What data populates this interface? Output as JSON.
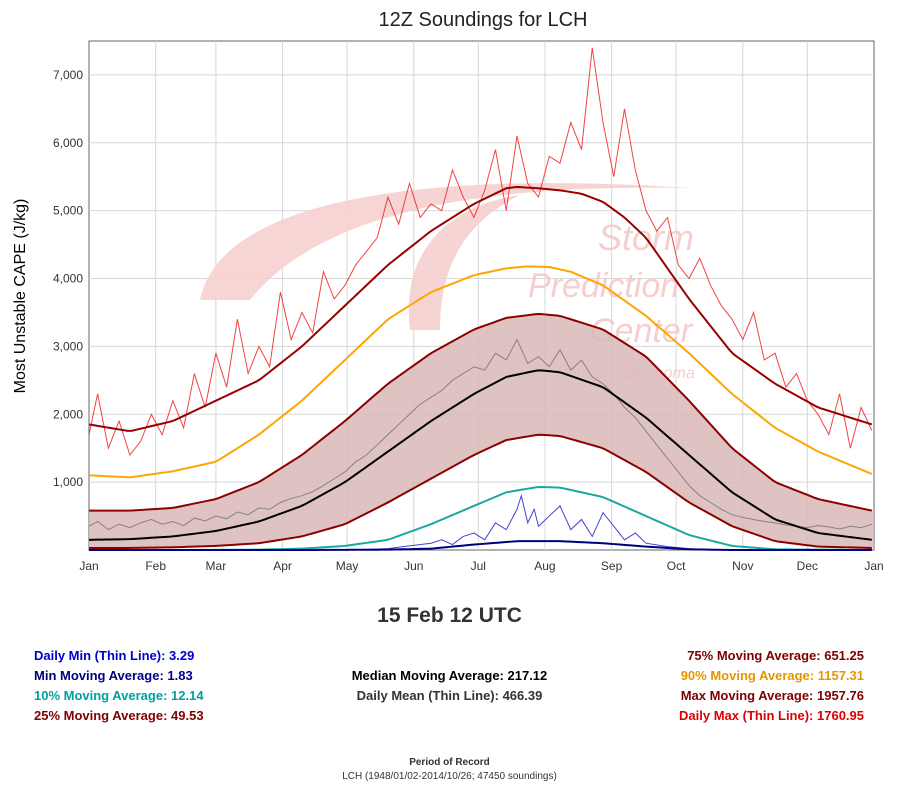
{
  "chart_data": {
    "type": "line",
    "title": "12Z Soundings for LCH",
    "subtitle": "15 Feb 12 UTC",
    "ylabel": "Most Unstable CAPE (J/kg)",
    "xlabel": "",
    "ylim": [
      0,
      7500
    ],
    "y_ticks": [
      1000,
      2000,
      3000,
      4000,
      5000,
      6000,
      7000
    ],
    "y_tick_labels": [
      "1,000",
      "2,000",
      "3,000",
      "4,000",
      "5,000",
      "6,000",
      "7,000"
    ],
    "x_range_days": [
      1,
      366
    ],
    "x_tick_days": [
      1,
      32,
      60,
      91,
      121,
      152,
      182,
      213,
      244,
      274,
      305,
      335,
      366
    ],
    "x_tick_labels": [
      "Jan",
      "Feb",
      "Mar",
      "Apr",
      "May",
      "Jun",
      "Jul",
      "Aug",
      "Sep",
      "Oct",
      "Nov",
      "Dec",
      "Jan"
    ],
    "grid": true,
    "shaded_band": {
      "lower": "25% Moving Average",
      "upper": "75% Moving Average",
      "color": "#d9b8b8"
    },
    "series": [
      {
        "name": "Max Moving Average",
        "color": "#990000",
        "width": 2,
        "days": [
          1,
          20,
          40,
          60,
          80,
          100,
          120,
          140,
          160,
          180,
          195,
          200,
          210,
          220,
          230,
          240,
          250,
          260,
          270,
          280,
          290,
          300,
          320,
          340,
          365
        ],
        "values": [
          1850,
          1750,
          1900,
          2200,
          2500,
          3000,
          3600,
          4200,
          4700,
          5100,
          5330,
          5350,
          5330,
          5300,
          5250,
          5130,
          4900,
          4600,
          4150,
          3700,
          3300,
          2900,
          2450,
          2100,
          1850
        ]
      },
      {
        "name": "90% Moving Average",
        "color": "#ffa500",
        "width": 2,
        "days": [
          1,
          20,
          40,
          60,
          80,
          100,
          120,
          140,
          160,
          180,
          195,
          205,
          215,
          225,
          240,
          260,
          280,
          300,
          320,
          340,
          365
        ],
        "values": [
          1100,
          1070,
          1160,
          1300,
          1700,
          2200,
          2800,
          3400,
          3800,
          4050,
          4150,
          4180,
          4170,
          4100,
          3900,
          3450,
          2900,
          2300,
          1800,
          1450,
          1120
        ]
      },
      {
        "name": "75% Moving Average",
        "color": "#8b0000",
        "width": 2,
        "days": [
          1,
          20,
          40,
          60,
          80,
          100,
          120,
          140,
          160,
          180,
          195,
          210,
          220,
          240,
          260,
          280,
          300,
          320,
          340,
          365
        ],
        "values": [
          580,
          580,
          620,
          750,
          1000,
          1400,
          1900,
          2450,
          2900,
          3250,
          3420,
          3480,
          3450,
          3250,
          2850,
          2200,
          1500,
          1000,
          750,
          580
        ]
      },
      {
        "name": "Median Moving Average",
        "color": "#000000",
        "width": 2,
        "days": [
          1,
          20,
          40,
          60,
          80,
          100,
          120,
          140,
          160,
          180,
          195,
          210,
          220,
          240,
          260,
          280,
          300,
          320,
          340,
          365
        ],
        "values": [
          150,
          160,
          200,
          280,
          420,
          650,
          1000,
          1450,
          1900,
          2300,
          2550,
          2650,
          2620,
          2400,
          1950,
          1400,
          850,
          450,
          250,
          150
        ]
      },
      {
        "name": "25% Moving Average",
        "color": "#8b0000",
        "width": 2,
        "days": [
          1,
          20,
          40,
          60,
          80,
          100,
          120,
          140,
          160,
          180,
          195,
          210,
          220,
          240,
          260,
          280,
          300,
          320,
          340,
          365
        ],
        "values": [
          30,
          30,
          40,
          60,
          100,
          200,
          380,
          700,
          1050,
          1400,
          1620,
          1700,
          1680,
          1500,
          1150,
          700,
          350,
          130,
          50,
          30
        ]
      },
      {
        "name": "10% Moving Average",
        "color": "#1aa8a0",
        "width": 2,
        "days": [
          1,
          40,
          80,
          100,
          120,
          140,
          160,
          180,
          195,
          210,
          220,
          240,
          260,
          280,
          300,
          320,
          365
        ],
        "values": [
          0,
          0,
          5,
          20,
          60,
          150,
          380,
          650,
          850,
          930,
          920,
          780,
          500,
          220,
          60,
          10,
          0
        ]
      },
      {
        "name": "Min Moving Average",
        "color": "#000080",
        "width": 2,
        "days": [
          1,
          100,
          140,
          160,
          180,
          200,
          220,
          240,
          260,
          280,
          300,
          365
        ],
        "values": [
          0,
          0,
          5,
          20,
          80,
          130,
          130,
          100,
          50,
          10,
          0,
          0
        ]
      }
    ],
    "daily_series": [
      {
        "name": "Daily Max (Thin Line)",
        "color": "#ee2222",
        "days": [
          1,
          5,
          10,
          15,
          20,
          25,
          30,
          35,
          40,
          45,
          50,
          55,
          60,
          65,
          70,
          75,
          80,
          85,
          90,
          95,
          100,
          105,
          110,
          115,
          120,
          125,
          130,
          135,
          140,
          145,
          150,
          155,
          160,
          165,
          170,
          175,
          180,
          185,
          190,
          195,
          200,
          205,
          210,
          215,
          220,
          225,
          230,
          235,
          240,
          245,
          250,
          255,
          260,
          265,
          270,
          275,
          280,
          285,
          290,
          295,
          300,
          305,
          310,
          315,
          320,
          325,
          330,
          335,
          340,
          345,
          350,
          355,
          360,
          365
        ],
        "values": [
          1700,
          2300,
          1500,
          1900,
          1400,
          1600,
          2000,
          1700,
          2200,
          1800,
          2600,
          2100,
          2900,
          2400,
          3400,
          2600,
          3000,
          2700,
          3800,
          3100,
          3500,
          3200,
          4100,
          3700,
          3900,
          4200,
          4400,
          4600,
          5200,
          4800,
          5400,
          4900,
          5100,
          5000,
          5600,
          5200,
          4900,
          5300,
          5900,
          5000,
          6100,
          5400,
          5200,
          5800,
          5700,
          6300,
          5900,
          7400,
          6300,
          5500,
          6500,
          5600,
          5000,
          4700,
          4900,
          4200,
          4000,
          4300,
          3900,
          3600,
          3400,
          3100,
          3500,
          2800,
          2900,
          2400,
          2600,
          2200,
          2000,
          1700,
          2300,
          1500,
          2100,
          1760
        ]
      },
      {
        "name": "Daily Mean (Thin Line)",
        "color": "#777777",
        "days": [
          1,
          5,
          10,
          15,
          20,
          25,
          30,
          35,
          40,
          45,
          50,
          55,
          60,
          65,
          70,
          75,
          80,
          85,
          90,
          95,
          100,
          105,
          110,
          115,
          120,
          125,
          130,
          135,
          140,
          145,
          150,
          155,
          160,
          165,
          170,
          175,
          180,
          185,
          190,
          195,
          200,
          205,
          210,
          215,
          220,
          225,
          230,
          235,
          240,
          245,
          250,
          255,
          260,
          265,
          270,
          275,
          280,
          285,
          290,
          295,
          300,
          305,
          310,
          315,
          320,
          325,
          330,
          335,
          340,
          345,
          350,
          355,
          360,
          365
        ],
        "values": [
          350,
          420,
          300,
          380,
          330,
          400,
          450,
          380,
          420,
          360,
          470,
          430,
          500,
          460,
          560,
          520,
          620,
          600,
          700,
          760,
          800,
          860,
          950,
          1050,
          1150,
          1300,
          1400,
          1550,
          1700,
          1850,
          2000,
          2150,
          2250,
          2350,
          2500,
          2600,
          2700,
          2650,
          2900,
          2800,
          3100,
          2750,
          2850,
          2700,
          2950,
          2650,
          2800,
          2550,
          2450,
          2300,
          2100,
          1950,
          1750,
          1550,
          1350,
          1150,
          950,
          800,
          700,
          600,
          520,
          480,
          450,
          420,
          400,
          370,
          350,
          330,
          360,
          340,
          310,
          350,
          330,
          380
        ]
      },
      {
        "name": "Daily Min (Thin Line)",
        "color": "#2222cc",
        "days": [
          1,
          120,
          130,
          140,
          150,
          160,
          165,
          170,
          175,
          180,
          185,
          190,
          195,
          200,
          202,
          205,
          208,
          210,
          215,
          220,
          225,
          230,
          235,
          240,
          245,
          250,
          255,
          260,
          270,
          280,
          290,
          365
        ],
        "values": [
          0,
          0,
          10,
          20,
          60,
          100,
          150,
          80,
          200,
          250,
          150,
          400,
          300,
          600,
          800,
          400,
          600,
          350,
          500,
          650,
          300,
          450,
          200,
          550,
          350,
          150,
          250,
          100,
          50,
          20,
          0,
          0
        ]
      }
    ]
  },
  "stats": {
    "daily_min": "Daily Min (Thin Line): 3.29",
    "min_ma": "Min Moving Average: 1.83",
    "ten_ma": "10% Moving Average: 12.14",
    "twentyfive_ma": "25% Moving Average: 49.53",
    "median_ma": "Median Moving Average: 217.12",
    "daily_mean": "Daily Mean (Thin Line): 466.39",
    "seventyfive_ma": "75% Moving Average: 651.25",
    "ninety_ma": "90% Moving Average: 1157.31",
    "max_ma": "Max Moving Average: 1957.76",
    "daily_max": "Daily Max (Thin Line): 1760.95"
  },
  "colors": {
    "daily_min": "#0000cc",
    "min_ma": "#000080",
    "ten_ma": "#00a0a0",
    "twentyfive_ma": "#800000",
    "median_ma": "#000000",
    "daily_mean": "#333333",
    "seventyfive_ma": "#800000",
    "ninety_ma": "#e69500",
    "max_ma": "#800000",
    "daily_max": "#dd0000"
  },
  "watermark": {
    "line1": "Storm",
    "line2": "Prediction",
    "line3": "Center",
    "line4": "Norman, Oklahoma"
  },
  "period_of_record": {
    "title": "Period of Record",
    "text": "LCH (1948/01/02-2014/10/26; 47450 soundings)"
  }
}
